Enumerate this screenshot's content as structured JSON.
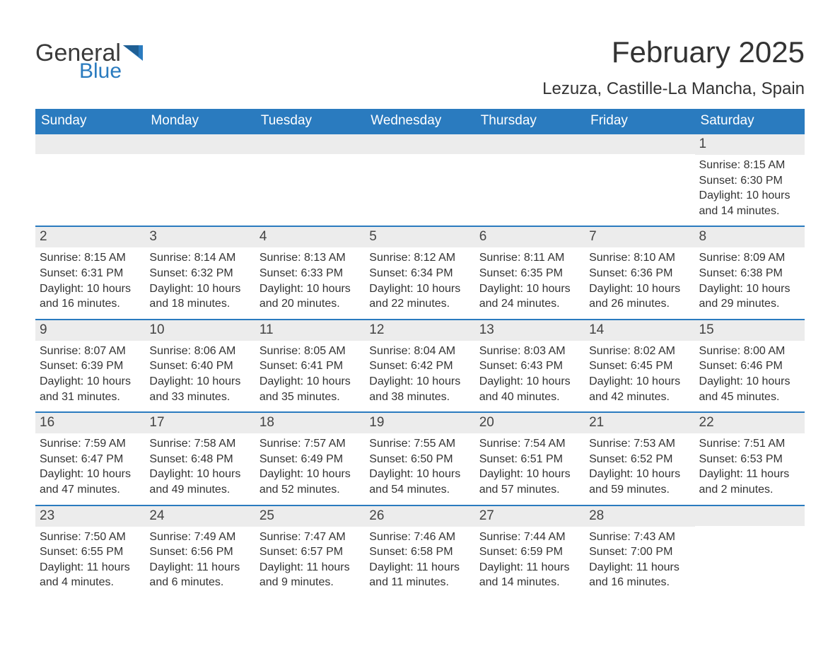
{
  "logo": {
    "general": "General",
    "blue": "Blue"
  },
  "title": "February 2025",
  "location": "Lezuza, Castille-La Mancha, Spain",
  "colors": {
    "header_bg": "#2a7bbf",
    "header_text": "#ffffff",
    "daynum_bg": "#ececec",
    "text": "#333333",
    "page_bg": "#ffffff"
  },
  "weekdays": [
    "Sunday",
    "Monday",
    "Tuesday",
    "Wednesday",
    "Thursday",
    "Friday",
    "Saturday"
  ],
  "weeks": [
    [
      null,
      null,
      null,
      null,
      null,
      null,
      {
        "n": "1",
        "sunrise": "Sunrise: 8:15 AM",
        "sunset": "Sunset: 6:30 PM",
        "daylight": "Daylight: 10 hours and 14 minutes."
      }
    ],
    [
      {
        "n": "2",
        "sunrise": "Sunrise: 8:15 AM",
        "sunset": "Sunset: 6:31 PM",
        "daylight": "Daylight: 10 hours and 16 minutes."
      },
      {
        "n": "3",
        "sunrise": "Sunrise: 8:14 AM",
        "sunset": "Sunset: 6:32 PM",
        "daylight": "Daylight: 10 hours and 18 minutes."
      },
      {
        "n": "4",
        "sunrise": "Sunrise: 8:13 AM",
        "sunset": "Sunset: 6:33 PM",
        "daylight": "Daylight: 10 hours and 20 minutes."
      },
      {
        "n": "5",
        "sunrise": "Sunrise: 8:12 AM",
        "sunset": "Sunset: 6:34 PM",
        "daylight": "Daylight: 10 hours and 22 minutes."
      },
      {
        "n": "6",
        "sunrise": "Sunrise: 8:11 AM",
        "sunset": "Sunset: 6:35 PM",
        "daylight": "Daylight: 10 hours and 24 minutes."
      },
      {
        "n": "7",
        "sunrise": "Sunrise: 8:10 AM",
        "sunset": "Sunset: 6:36 PM",
        "daylight": "Daylight: 10 hours and 26 minutes."
      },
      {
        "n": "8",
        "sunrise": "Sunrise: 8:09 AM",
        "sunset": "Sunset: 6:38 PM",
        "daylight": "Daylight: 10 hours and 29 minutes."
      }
    ],
    [
      {
        "n": "9",
        "sunrise": "Sunrise: 8:07 AM",
        "sunset": "Sunset: 6:39 PM",
        "daylight": "Daylight: 10 hours and 31 minutes."
      },
      {
        "n": "10",
        "sunrise": "Sunrise: 8:06 AM",
        "sunset": "Sunset: 6:40 PM",
        "daylight": "Daylight: 10 hours and 33 minutes."
      },
      {
        "n": "11",
        "sunrise": "Sunrise: 8:05 AM",
        "sunset": "Sunset: 6:41 PM",
        "daylight": "Daylight: 10 hours and 35 minutes."
      },
      {
        "n": "12",
        "sunrise": "Sunrise: 8:04 AM",
        "sunset": "Sunset: 6:42 PM",
        "daylight": "Daylight: 10 hours and 38 minutes."
      },
      {
        "n": "13",
        "sunrise": "Sunrise: 8:03 AM",
        "sunset": "Sunset: 6:43 PM",
        "daylight": "Daylight: 10 hours and 40 minutes."
      },
      {
        "n": "14",
        "sunrise": "Sunrise: 8:02 AM",
        "sunset": "Sunset: 6:45 PM",
        "daylight": "Daylight: 10 hours and 42 minutes."
      },
      {
        "n": "15",
        "sunrise": "Sunrise: 8:00 AM",
        "sunset": "Sunset: 6:46 PM",
        "daylight": "Daylight: 10 hours and 45 minutes."
      }
    ],
    [
      {
        "n": "16",
        "sunrise": "Sunrise: 7:59 AM",
        "sunset": "Sunset: 6:47 PM",
        "daylight": "Daylight: 10 hours and 47 minutes."
      },
      {
        "n": "17",
        "sunrise": "Sunrise: 7:58 AM",
        "sunset": "Sunset: 6:48 PM",
        "daylight": "Daylight: 10 hours and 49 minutes."
      },
      {
        "n": "18",
        "sunrise": "Sunrise: 7:57 AM",
        "sunset": "Sunset: 6:49 PM",
        "daylight": "Daylight: 10 hours and 52 minutes."
      },
      {
        "n": "19",
        "sunrise": "Sunrise: 7:55 AM",
        "sunset": "Sunset: 6:50 PM",
        "daylight": "Daylight: 10 hours and 54 minutes."
      },
      {
        "n": "20",
        "sunrise": "Sunrise: 7:54 AM",
        "sunset": "Sunset: 6:51 PM",
        "daylight": "Daylight: 10 hours and 57 minutes."
      },
      {
        "n": "21",
        "sunrise": "Sunrise: 7:53 AM",
        "sunset": "Sunset: 6:52 PM",
        "daylight": "Daylight: 10 hours and 59 minutes."
      },
      {
        "n": "22",
        "sunrise": "Sunrise: 7:51 AM",
        "sunset": "Sunset: 6:53 PM",
        "daylight": "Daylight: 11 hours and 2 minutes."
      }
    ],
    [
      {
        "n": "23",
        "sunrise": "Sunrise: 7:50 AM",
        "sunset": "Sunset: 6:55 PM",
        "daylight": "Daylight: 11 hours and 4 minutes."
      },
      {
        "n": "24",
        "sunrise": "Sunrise: 7:49 AM",
        "sunset": "Sunset: 6:56 PM",
        "daylight": "Daylight: 11 hours and 6 minutes."
      },
      {
        "n": "25",
        "sunrise": "Sunrise: 7:47 AM",
        "sunset": "Sunset: 6:57 PM",
        "daylight": "Daylight: 11 hours and 9 minutes."
      },
      {
        "n": "26",
        "sunrise": "Sunrise: 7:46 AM",
        "sunset": "Sunset: 6:58 PM",
        "daylight": "Daylight: 11 hours and 11 minutes."
      },
      {
        "n": "27",
        "sunrise": "Sunrise: 7:44 AM",
        "sunset": "Sunset: 6:59 PM",
        "daylight": "Daylight: 11 hours and 14 minutes."
      },
      {
        "n": "28",
        "sunrise": "Sunrise: 7:43 AM",
        "sunset": "Sunset: 7:00 PM",
        "daylight": "Daylight: 11 hours and 16 minutes."
      },
      null
    ]
  ]
}
